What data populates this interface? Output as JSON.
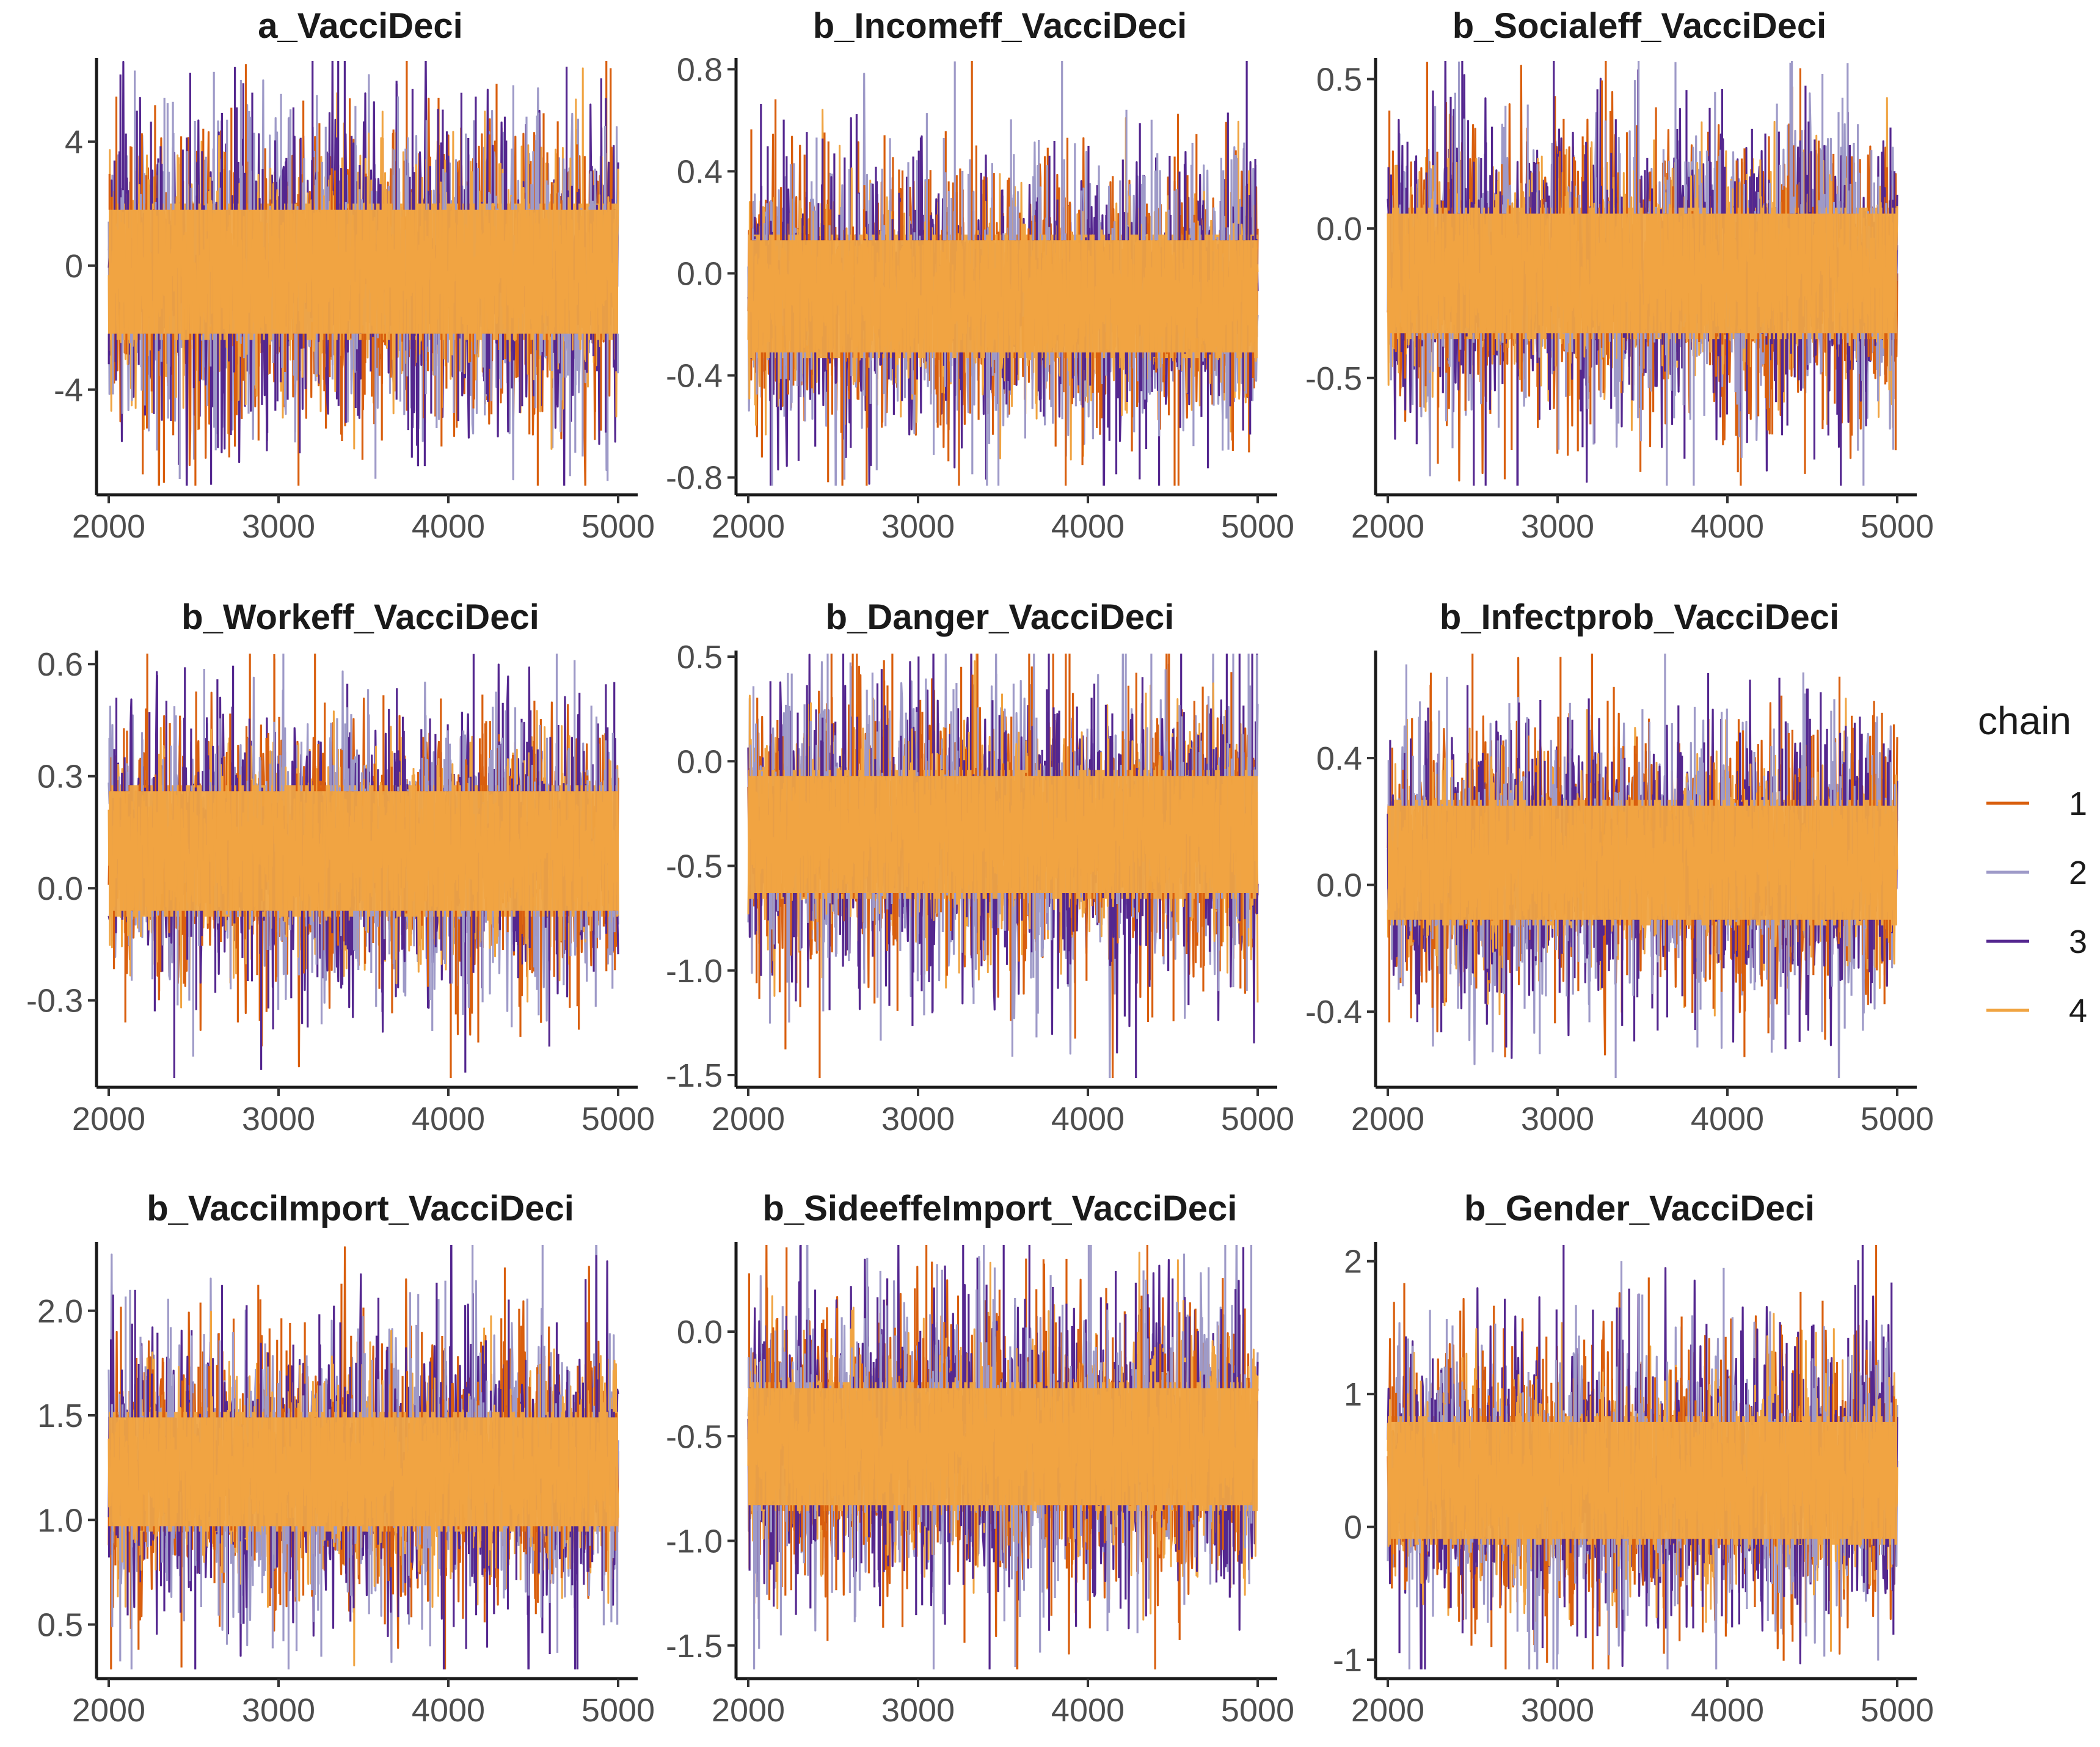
{
  "chart_data": {
    "type": "line",
    "description_kind": "MCMC trace plots",
    "x_range": [
      2000,
      5000
    ],
    "x_ticks": [
      2000,
      3000,
      4000,
      5000
    ],
    "legend": {
      "title": "chain",
      "position": "right",
      "entries": [
        {
          "name": "1",
          "color": "#D95F0E"
        },
        {
          "name": "2",
          "color": "#9E9AC8"
        },
        {
          "name": "3",
          "color": "#54278F"
        },
        {
          "name": "4",
          "color": "#F0A442"
        }
      ]
    },
    "panels": [
      {
        "title": "a_VacciDeci",
        "ylim": [
          -7,
          6.5
        ],
        "yticks": [
          -4,
          0,
          4
        ],
        "ytick_labels": [
          "-4",
          "0",
          "4"
        ],
        "center": -0.2,
        "core_sd": 1.0,
        "spike_sd": 2.2
      },
      {
        "title": "b_Incomeff_VacciDeci",
        "ylim": [
          -0.82,
          0.82
        ],
        "yticks": [
          -0.8,
          -0.4,
          0.0,
          0.4,
          0.8
        ],
        "ytick_labels": [
          "-0.8",
          "-0.4",
          "0.0",
          "0.4",
          "0.8"
        ],
        "center": -0.09,
        "core_sd": 0.11,
        "spike_sd": 0.22
      },
      {
        "title": "b_Socialeff_VacciDeci",
        "ylim": [
          -0.85,
          0.55
        ],
        "yticks": [
          -0.5,
          0.0,
          0.5
        ],
        "ytick_labels": [
          "-0.5",
          "0.0",
          "0.5"
        ],
        "center": -0.15,
        "core_sd": 0.1,
        "spike_sd": 0.2
      },
      {
        "title": "b_Workeff_VacciDeci",
        "ylim": [
          -0.5,
          0.62
        ],
        "yticks": [
          -0.3,
          0.0,
          0.3,
          0.6
        ],
        "ytick_labels": [
          "-0.3",
          "0.0",
          "0.3",
          "0.6"
        ],
        "center": 0.1,
        "core_sd": 0.08,
        "spike_sd": 0.15
      },
      {
        "title": "b_Danger_VacciDeci",
        "ylim": [
          -1.5,
          0.5
        ],
        "yticks": [
          -1.5,
          -1.0,
          -0.5,
          0.0,
          0.5
        ],
        "ytick_labels": [
          "-1.5",
          "-1.0",
          "-0.5",
          "0.0",
          "0.5"
        ],
        "center": -0.35,
        "core_sd": 0.14,
        "spike_sd": 0.3
      },
      {
        "title": "b_Infectprob_VacciDeci",
        "ylim": [
          -0.6,
          0.72
        ],
        "yticks": [
          -0.4,
          0.0,
          0.4
        ],
        "ytick_labels": [
          "-0.4",
          "0.0",
          "0.4"
        ],
        "center": 0.07,
        "core_sd": 0.09,
        "spike_sd": 0.18
      },
      {
        "title": "b_VacciImport_VacciDeci",
        "ylim": [
          0.3,
          2.3
        ],
        "yticks": [
          0.5,
          1.0,
          1.5,
          2.0
        ],
        "ytick_labels": [
          "0.5",
          "1.0",
          "1.5",
          "2.0"
        ],
        "center": 1.23,
        "core_sd": 0.13,
        "spike_sd": 0.28
      },
      {
        "title": "b_SideeffeImport_VacciDeci",
        "ylim": [
          -1.6,
          0.4
        ],
        "yticks": [
          -1.5,
          -1.0,
          -0.5,
          0.0
        ],
        "ytick_labels": [
          "-1.5",
          "-1.0",
          "-0.5",
          "0.0"
        ],
        "center": -0.55,
        "core_sd": 0.14,
        "spike_sd": 0.3
      },
      {
        "title": "b_Gender_VacciDeci",
        "ylim": [
          -1.05,
          2.1
        ],
        "yticks": [
          -1,
          0,
          1,
          2
        ],
        "ytick_labels": [
          "-1",
          "0",
          "1",
          "2"
        ],
        "center": 0.35,
        "core_sd": 0.22,
        "spike_sd": 0.45
      }
    ]
  }
}
